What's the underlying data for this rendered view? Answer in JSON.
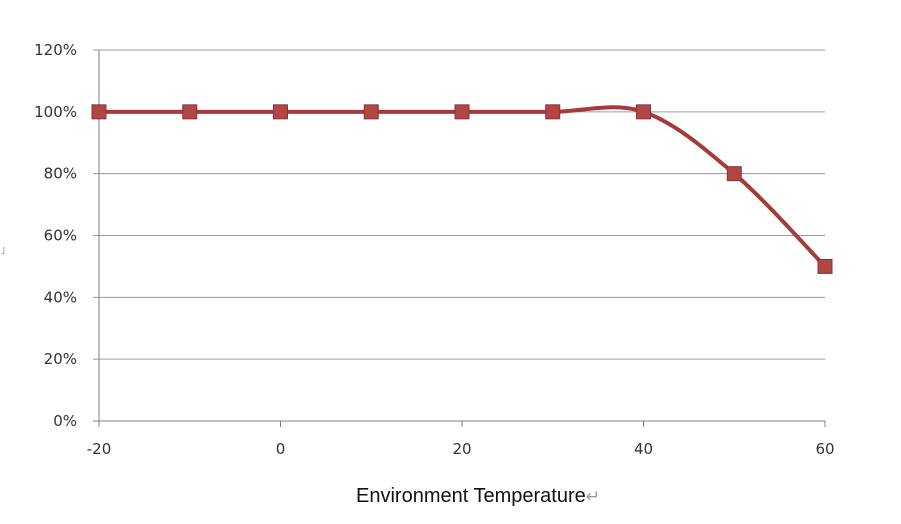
{
  "chart_data": {
    "type": "line",
    "title": "",
    "xlabel": "Environment Temperature",
    "xlabel_suffix": "↵",
    "ylabel": "",
    "left_mark": "˩",
    "x": [
      -20,
      -10,
      0,
      10,
      20,
      30,
      40,
      50,
      60
    ],
    "series": [
      {
        "values": [
          100,
          100,
          100,
          100,
          100,
          100,
          100,
          80,
          50
        ],
        "color": "#a33b3b"
      }
    ],
    "x_ticks": [
      -20,
      0,
      20,
      40,
      60
    ],
    "x_tick_labels": [
      "-20",
      "0",
      "20",
      "40",
      "60"
    ],
    "y_ticks": [
      0,
      20,
      40,
      60,
      80,
      100,
      120
    ],
    "y_tick_labels": [
      "0%",
      "20%",
      "40%",
      "60%",
      "80%",
      "100%",
      "120%"
    ],
    "xlim": [
      -20,
      60
    ],
    "ylim": [
      0,
      120
    ],
    "grid": "horizontal",
    "legend": "none",
    "colors": {
      "grid": "#9a9a9a",
      "axis": "#7f7f7f",
      "line": "#a33b3b",
      "marker": "#b04646"
    }
  }
}
